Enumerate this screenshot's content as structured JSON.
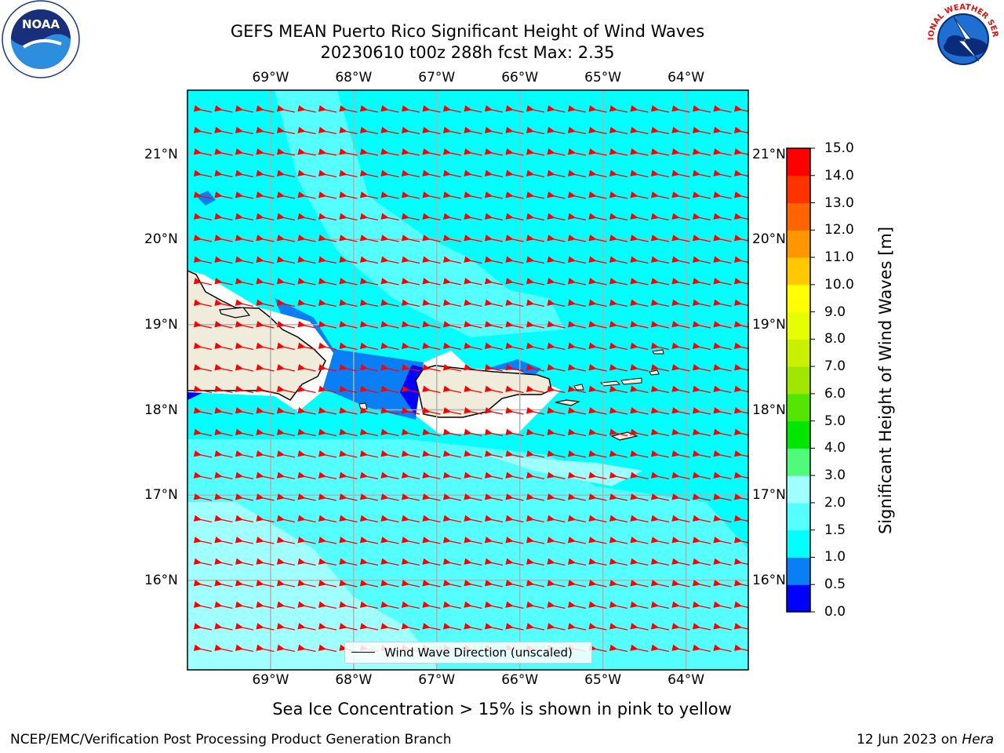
{
  "title": {
    "line1": "GEFS MEAN Puerto Rico Significant Height of Wind Waves",
    "line2": "20230610 t00z 288h fcst   Max: 2.35"
  },
  "map": {
    "lon_labels": [
      "69°W",
      "68°W",
      "67°W",
      "66°W",
      "65°W",
      "64°W"
    ],
    "lat_labels": [
      "21°N",
      "20°N",
      "19°N",
      "18°N",
      "17°N",
      "16°N"
    ],
    "lon_range": [
      -70.0,
      -63.25
    ],
    "lat_range": [
      14.95,
      21.75
    ],
    "land_color": "#efecdc",
    "coast_color": "#000000",
    "vector_color": "#ff0000",
    "grid_color": "#b0b0b0"
  },
  "legend": {
    "label": "Wind Wave Direction (unscaled)"
  },
  "colorbar": {
    "label": "Significant Height of Wind Waves [m]",
    "ticks": [
      "0.0",
      "0.5",
      "1.0",
      "1.5",
      "2.0",
      "3.0",
      "4.0",
      "5.0",
      "6.0",
      "7.0",
      "8.0",
      "9.0",
      "10.0",
      "11.0",
      "12.0",
      "13.0",
      "14.0",
      "15.0"
    ],
    "colors": [
      "#0000ff",
      "#0a7ff5",
      "#00ffff",
      "#55ffff",
      "#a0ffff",
      "#50fa7a",
      "#00e600",
      "#55e600",
      "#a0e600",
      "#c8f000",
      "#e6ff00",
      "#ffff00",
      "#ffc800",
      "#ff9600",
      "#ff6400",
      "#ff3200",
      "#ff0000"
    ]
  },
  "note": "Sea Ice Concentration > 15% is shown in pink to yellow",
  "footer": {
    "left": "NCEP/EMC/Verification Post Processing Product Generation Branch",
    "date": "12 Jun 2023 on ",
    "host": "Hera"
  },
  "logos": {
    "left": "NOAA",
    "right": "NATIONAL WEATHER SERVICE",
    "noaa_icon": "noaa-seal-icon",
    "nws_icon": "nws-seal-icon"
  }
}
